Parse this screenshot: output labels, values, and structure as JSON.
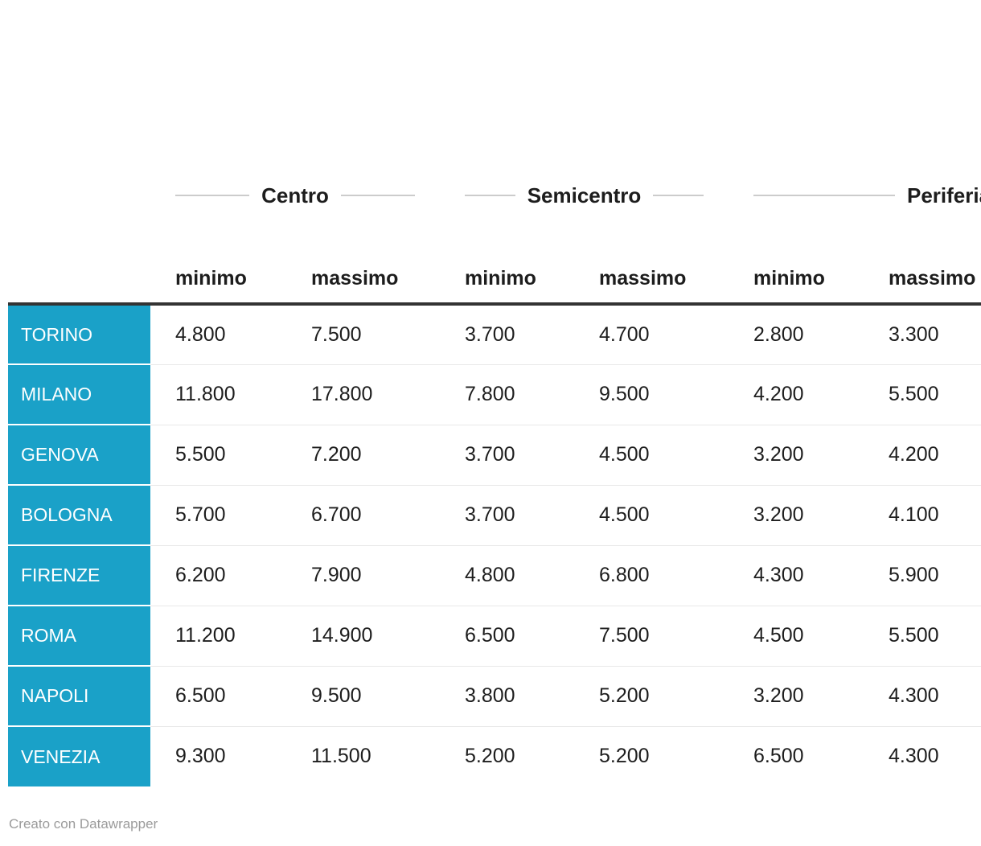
{
  "chart_data": {
    "type": "table",
    "column_groups": [
      "Centro",
      "Semicentro",
      "Periferia"
    ],
    "columns": [
      "minimo",
      "massimo",
      "minimo",
      "massimo",
      "minimo",
      "massimo"
    ],
    "row_header": [
      "TORINO",
      "MILANO",
      "GENOVA",
      "BOLOGNA",
      "FIRENZE",
      "ROMA",
      "NAPOLI",
      "VENEZIA"
    ],
    "values": [
      [
        4800,
        7500,
        3700,
        4700,
        2800,
        3300
      ],
      [
        11800,
        17800,
        7800,
        9500,
        4200,
        5500
      ],
      [
        5500,
        7200,
        3700,
        4500,
        3200,
        4200
      ],
      [
        5700,
        6700,
        3700,
        4500,
        3200,
        4100
      ],
      [
        6200,
        7900,
        4800,
        6800,
        4300,
        5900
      ],
      [
        11200,
        14900,
        6500,
        7500,
        4500,
        5500
      ],
      [
        6500,
        9500,
        3800,
        5200,
        3200,
        4300
      ],
      [
        9300,
        11500,
        5200,
        5200,
        6500,
        4300
      ]
    ]
  },
  "table": {
    "groups": [
      {
        "label": "Centro"
      },
      {
        "label": "Semicentro"
      },
      {
        "label": "Periferia"
      }
    ],
    "subheaders": [
      "minimo",
      "massimo",
      "minimo",
      "massimo",
      "minimo",
      "massimo"
    ],
    "rows": [
      {
        "city": "TORINO",
        "values": [
          "4.800",
          "7.500",
          "3.700",
          "4.700",
          "2.800",
          "3.300"
        ]
      },
      {
        "city": "MILANO",
        "values": [
          "11.800",
          "17.800",
          "7.800",
          "9.500",
          "4.200",
          "5.500"
        ]
      },
      {
        "city": "GENOVA",
        "values": [
          "5.500",
          "7.200",
          "3.700",
          "4.500",
          "3.200",
          "4.200"
        ]
      },
      {
        "city": "BOLOGNA",
        "values": [
          "5.700",
          "6.700",
          "3.700",
          "4.500",
          "3.200",
          "4.100"
        ]
      },
      {
        "city": "FIRENZE",
        "values": [
          "6.200",
          "7.900",
          "4.800",
          "6.800",
          "4.300",
          "5.900"
        ]
      },
      {
        "city": "ROMA",
        "values": [
          "11.200",
          "14.900",
          "6.500",
          "7.500",
          "4.500",
          "5.500"
        ]
      },
      {
        "city": "NAPOLI",
        "values": [
          "6.500",
          "9.500",
          "3.800",
          "5.200",
          "3.200",
          "4.300"
        ]
      },
      {
        "city": "VENEZIA",
        "values": [
          "9.300",
          "11.500",
          "5.200",
          "5.200",
          "6.500",
          "4.300"
        ]
      }
    ]
  },
  "footer": {
    "credit": "Creato con Datawrapper"
  },
  "colors": {
    "row_header_bg": "#1aa1c8",
    "row_header_text": "#ffffff",
    "header_rule": "#333333",
    "row_divider": "#e8e8e8",
    "group_line": "#cccccc",
    "credit_text": "#9b9b9b",
    "body_text": "#1d1d1d"
  }
}
